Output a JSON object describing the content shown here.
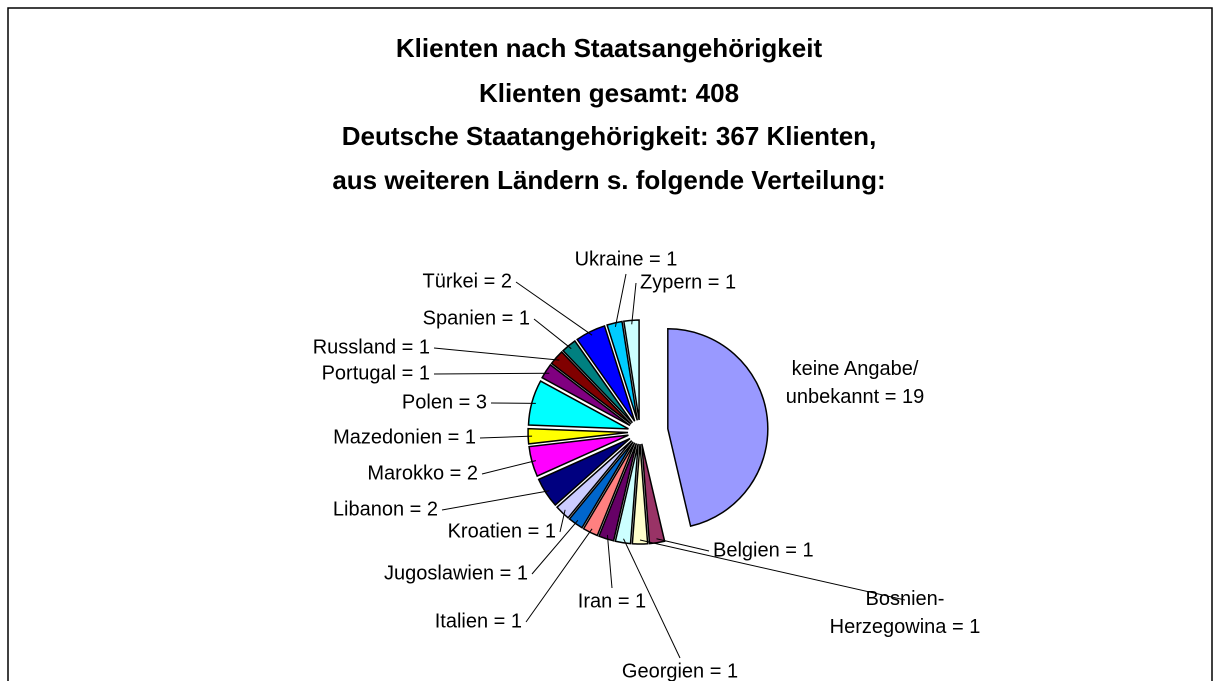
{
  "chart_data": {
    "type": "pie",
    "title": [
      "Klienten nach Staatsangehörigkeit",
      "Klienten gesamt: 408",
      "Deutsche Staatangehörigkeit: 367 Klienten,",
      "aus weiteren Ländern s. folgende Verteilung:"
    ],
    "values": [
      19,
      1,
      1,
      1,
      1,
      1,
      1,
      1,
      2,
      2,
      1,
      3,
      1,
      1,
      1,
      2,
      1,
      1
    ],
    "value_labels": [
      "keine Angabe/\nunbekannt = 19",
      "Belgien = 1",
      "Bosnien-\nHerzegowina = 1",
      "Georgien = 1",
      "Iran = 1",
      "Italien = 1",
      "Jugoslawien = 1",
      "Kroatien = 1",
      "Libanon = 2",
      "Marokko = 2",
      "Mazedonien = 1",
      "Polen = 3",
      "Portugal = 1",
      "Russland = 1",
      "Spanien = 1",
      "Türkei = 2",
      "Ukraine = 1",
      "Zypern = 1"
    ],
    "colors": [
      "#9999ff",
      "#993366",
      "#ffffcc",
      "#ccffff",
      "#660066",
      "#ff8080",
      "#0066cc",
      "#ccccff",
      "#000080",
      "#ff00ff",
      "#ffff00",
      "#00ffff",
      "#800080",
      "#800000",
      "#008080",
      "#0000ff",
      "#00ccff",
      "#ccffff"
    ]
  }
}
